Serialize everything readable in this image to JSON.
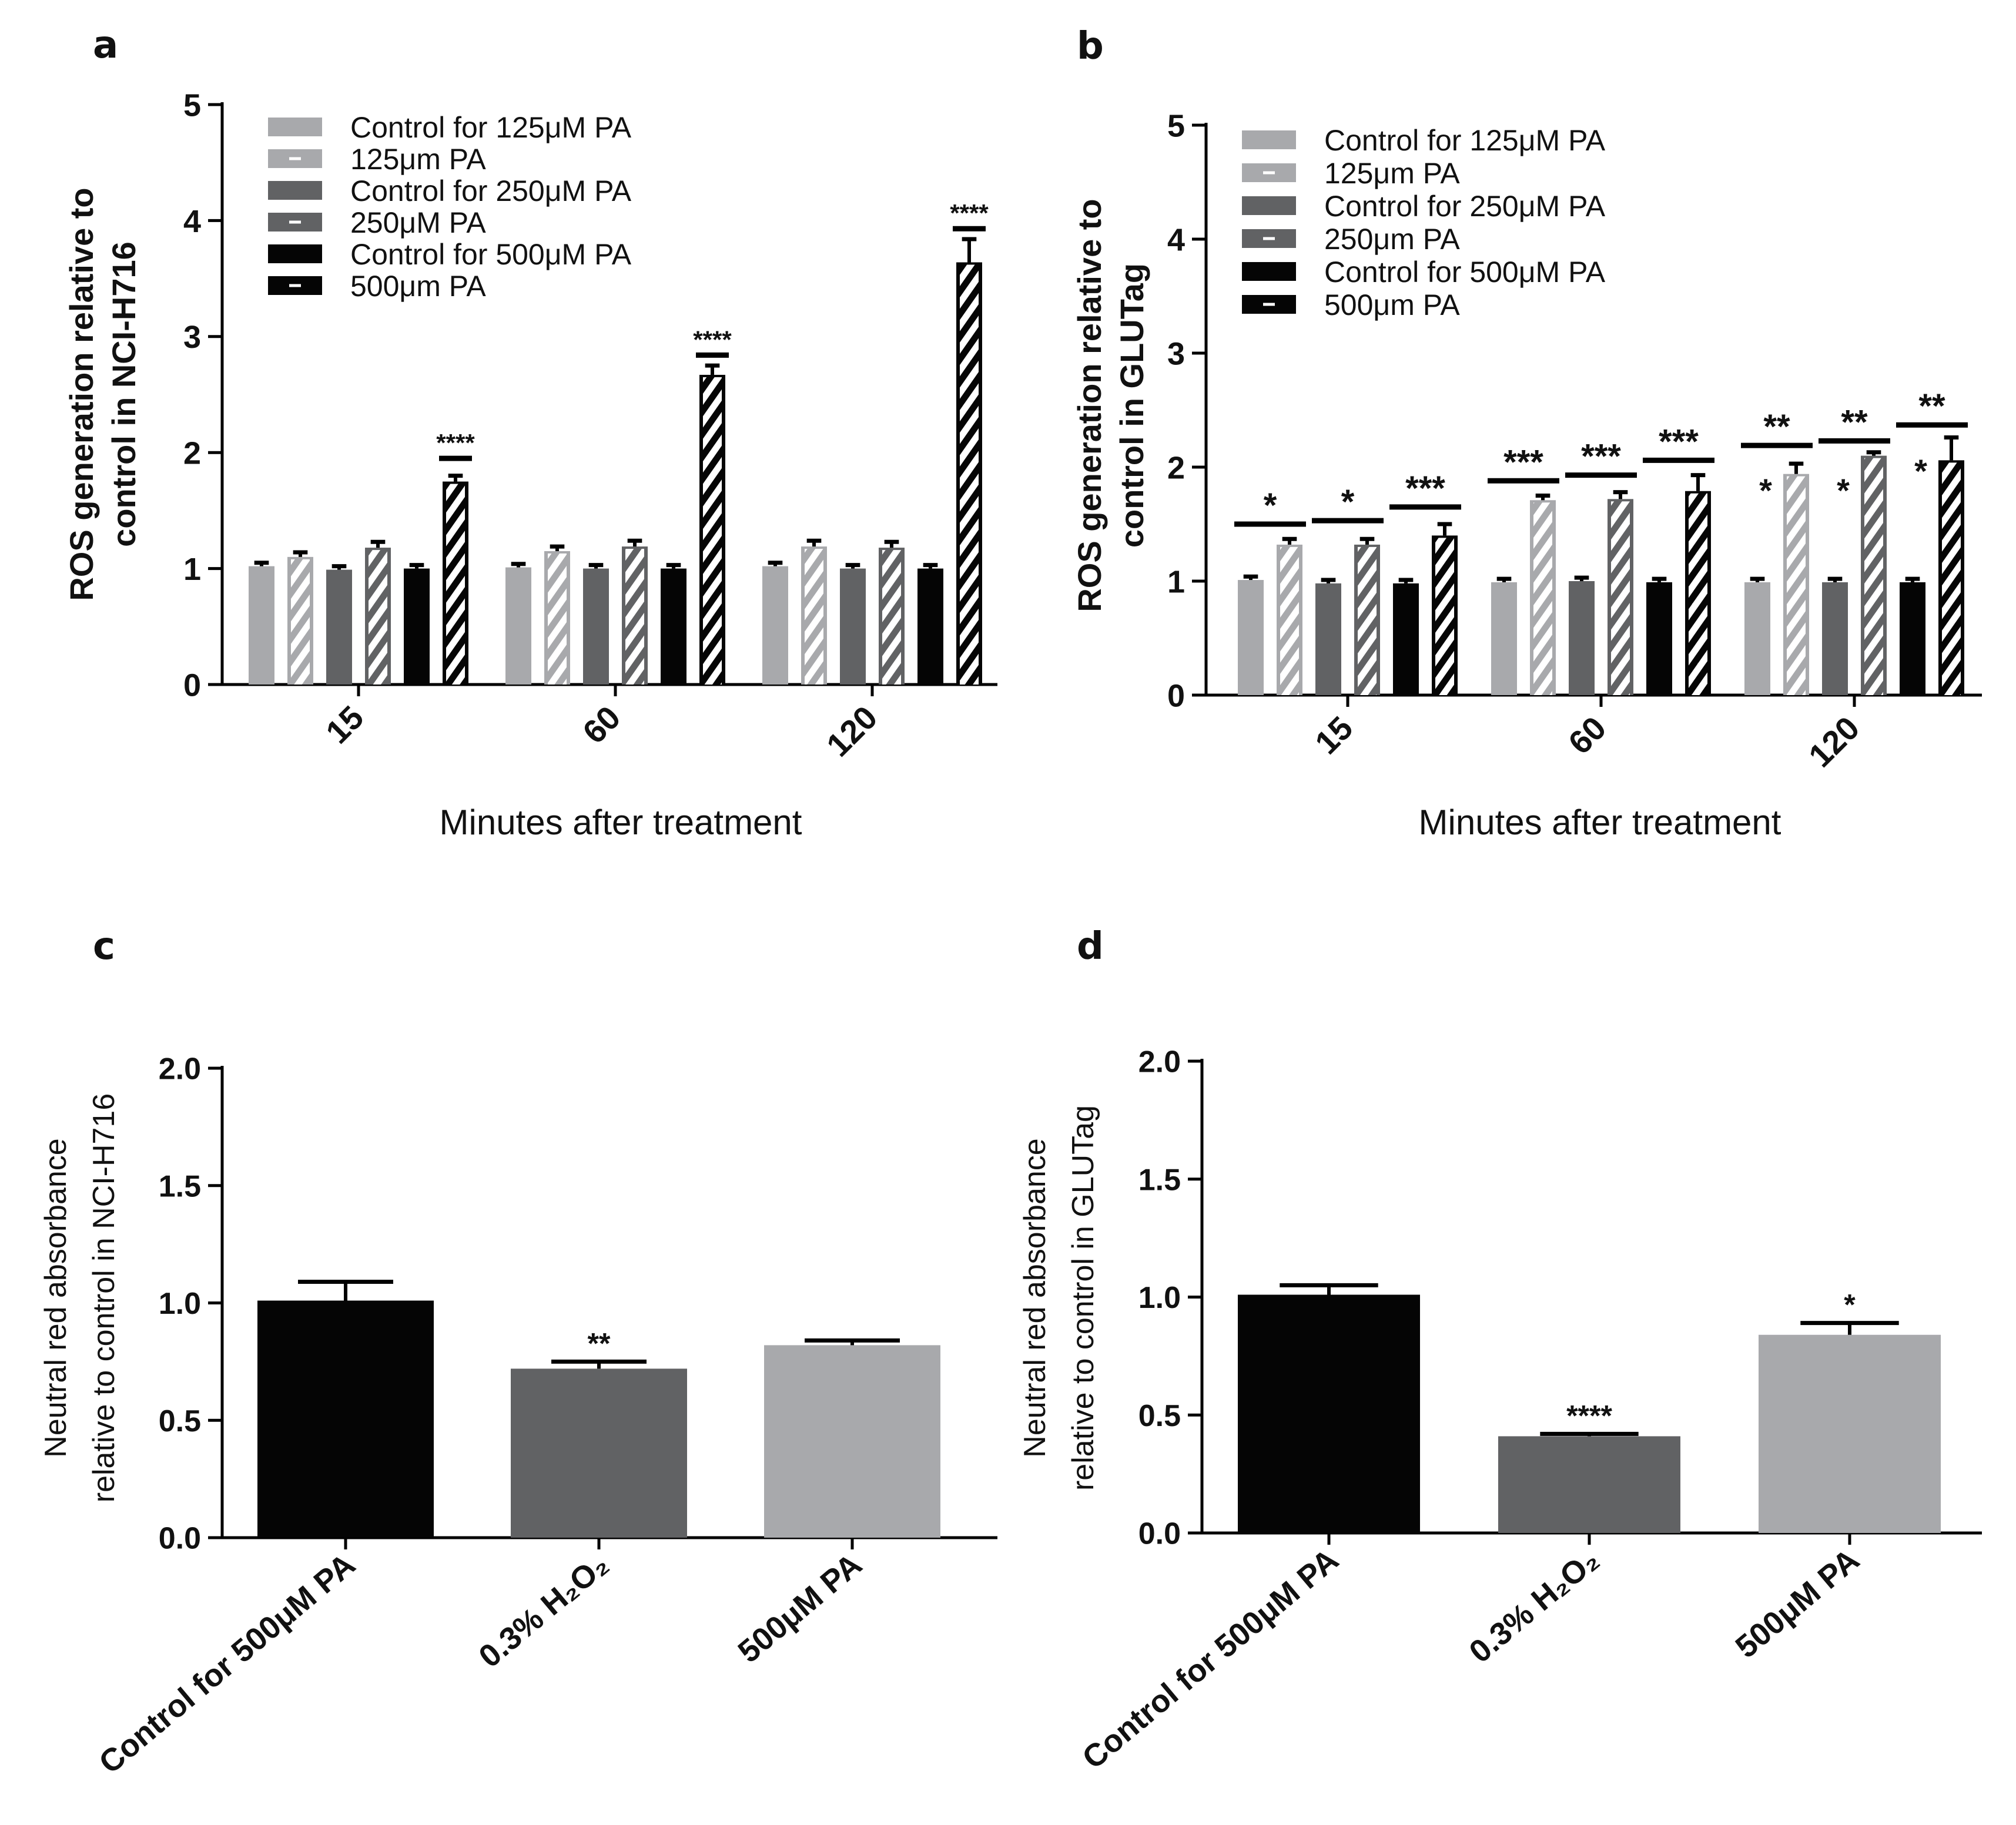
{
  "figure": {
    "panel_letters": [
      "a",
      "b",
      "c",
      "d"
    ],
    "colors": {
      "c125": "#a8a9ac",
      "c250": "#616264",
      "c500": "#050505",
      "stripe": "#ffffff",
      "text": "#111111"
    }
  },
  "chart_data": [
    {
      "panel": "a",
      "type": "bar",
      "grouped": true,
      "ylabel_lines": [
        "ROS generation relative to",
        "control in NCI-H716"
      ],
      "xlabel": "Minutes after treatment",
      "categories": [
        "15",
        "60",
        "120"
      ],
      "ylim": [
        0,
        5
      ],
      "yticks": [
        "0",
        "1",
        "2",
        "3",
        "4",
        "5"
      ],
      "legend_position": "top-left",
      "series": [
        {
          "name": "Control for 125μM PA",
          "color": "c125",
          "striped": false,
          "values": [
            1.02,
            1.01,
            1.02
          ],
          "errors": [
            0.03,
            0.03,
            0.03
          ]
        },
        {
          "name": "125μm PA",
          "color": "c125",
          "striped": true,
          "values": [
            1.1,
            1.15,
            1.19
          ],
          "errors": [
            0.04,
            0.04,
            0.05
          ]
        },
        {
          "name": "Control for 250μM PA",
          "color": "c250",
          "striped": false,
          "values": [
            0.99,
            1.0,
            1.0
          ],
          "errors": [
            0.03,
            0.03,
            0.03
          ]
        },
        {
          "name": "250μM PA",
          "color": "c250",
          "striped": true,
          "values": [
            1.18,
            1.19,
            1.18
          ],
          "errors": [
            0.05,
            0.05,
            0.05
          ]
        },
        {
          "name": "Control for 500μM PA",
          "color": "c500",
          "striped": false,
          "values": [
            1.0,
            1.0,
            1.0
          ],
          "errors": [
            0.03,
            0.03,
            0.03
          ]
        },
        {
          "name": "500μm PA",
          "color": "c500",
          "striped": true,
          "values": [
            1.75,
            2.67,
            3.64
          ],
          "errors": [
            0.05,
            0.08,
            0.2
          ]
        }
      ],
      "annotations": [
        {
          "group": 0,
          "series": 5,
          "text": "****",
          "y": 1.95,
          "line_from": 5,
          "line_to": 5
        },
        {
          "group": 1,
          "series": 5,
          "text": "****",
          "y": 2.84,
          "line_from": 5,
          "line_to": 5
        },
        {
          "group": 2,
          "series": 5,
          "text": "****",
          "y": 3.93,
          "line_from": 5,
          "line_to": 5
        }
      ]
    },
    {
      "panel": "b",
      "type": "bar",
      "grouped": true,
      "ylabel_lines": [
        "ROS generation relative to",
        "control in GLUTag"
      ],
      "xlabel": "Minutes after treatment",
      "categories": [
        "15",
        "60",
        "120"
      ],
      "ylim": [
        0,
        5
      ],
      "yticks": [
        "0",
        "1",
        "2",
        "3",
        "4",
        "5"
      ],
      "legend_position": "top-left",
      "series": [
        {
          "name": "Control for 125μM PA",
          "color": "c125",
          "striped": false,
          "values": [
            1.01,
            0.99,
            0.99
          ],
          "errors": [
            0.03,
            0.03,
            0.03
          ]
        },
        {
          "name": "125μm PA",
          "color": "c125",
          "striped": true,
          "values": [
            1.32,
            1.71,
            1.94
          ],
          "errors": [
            0.05,
            0.04,
            0.09
          ]
        },
        {
          "name": "Control for 250μM PA",
          "color": "c250",
          "striped": false,
          "values": [
            0.98,
            1.0,
            0.99
          ],
          "errors": [
            0.03,
            0.03,
            0.03
          ]
        },
        {
          "name": "250μm PA",
          "color": "c250",
          "striped": true,
          "values": [
            1.32,
            1.72,
            2.1
          ],
          "errors": [
            0.05,
            0.06,
            0.03
          ]
        },
        {
          "name": "Control for 500μM PA",
          "color": "c500",
          "striped": false,
          "values": [
            0.98,
            0.99,
            0.99
          ],
          "errors": [
            0.03,
            0.03,
            0.03
          ]
        },
        {
          "name": "500μm PA",
          "color": "c500",
          "striped": true,
          "values": [
            1.4,
            1.79,
            2.06
          ],
          "errors": [
            0.1,
            0.14,
            0.2
          ]
        }
      ],
      "annotations": [
        {
          "group": 0,
          "series": 0,
          "line_from": 0,
          "line_to": 1,
          "text": "*",
          "y": 1.5
        },
        {
          "group": 0,
          "series": 2,
          "line_from": 2,
          "line_to": 3,
          "text": "*",
          "y": 1.53
        },
        {
          "group": 0,
          "series": 4,
          "line_from": 4,
          "line_to": 5,
          "text": "***",
          "y": 1.65
        },
        {
          "group": 1,
          "series": 0,
          "line_from": 0,
          "line_to": 1,
          "text": "***",
          "y": 1.88
        },
        {
          "group": 1,
          "series": 2,
          "line_from": 2,
          "line_to": 3,
          "text": "***",
          "y": 1.93
        },
        {
          "group": 1,
          "series": 4,
          "line_from": 4,
          "line_to": 5,
          "text": "***",
          "y": 2.06
        },
        {
          "group": 2,
          "series": 0,
          "line_from": 0,
          "line_to": 1,
          "text": "**",
          "y": 2.19
        },
        {
          "group": 2,
          "series": 2,
          "line_from": 2,
          "line_to": 3,
          "text": "**",
          "y": 2.23
        },
        {
          "group": 2,
          "series": 4,
          "line_from": 4,
          "line_to": 5,
          "text": "**",
          "y": 2.37
        }
      ],
      "side_marks": [
        {
          "group": 2,
          "series": 1,
          "text": "*",
          "y": 1.83
        },
        {
          "group": 2,
          "series": 3,
          "text": "*",
          "y": 1.83
        },
        {
          "group": 2,
          "series": 5,
          "text": "*",
          "y": 2.0
        }
      ]
    },
    {
      "panel": "c",
      "type": "bar",
      "ylabel_lines": [
        "Neutral red absorbance",
        "relative to control in NCI-H716"
      ],
      "categories": [
        "Control for 500μM PA",
        "0.3% H₂O₂",
        "500μM PA"
      ],
      "values": [
        1.01,
        0.72,
        0.82
      ],
      "errors": [
        0.08,
        0.03,
        0.02
      ],
      "colors": [
        "c500",
        "c250",
        "c125"
      ],
      "ylim": [
        0,
        2
      ],
      "yticks": [
        "0.0",
        "0.5",
        "1.0",
        "1.5",
        "2.0"
      ],
      "annotations": [
        {
          "index": 1,
          "text": "**"
        }
      ]
    },
    {
      "panel": "d",
      "type": "bar",
      "ylabel_lines": [
        "Neutral red absorbance",
        "relative to control in GLUTag"
      ],
      "categories": [
        "Control for 500μM PA",
        "0.3% H₂O₂",
        "500μM PA"
      ],
      "values": [
        1.01,
        0.41,
        0.84
      ],
      "errors": [
        0.04,
        0.01,
        0.05
      ],
      "colors": [
        "c500",
        "c250",
        "c125"
      ],
      "ylim": [
        0,
        2
      ],
      "yticks": [
        "0.0",
        "0.5",
        "1.0",
        "1.5",
        "2.0"
      ],
      "annotations": [
        {
          "index": 1,
          "text": "****"
        },
        {
          "index": 2,
          "text": "*"
        }
      ]
    }
  ]
}
